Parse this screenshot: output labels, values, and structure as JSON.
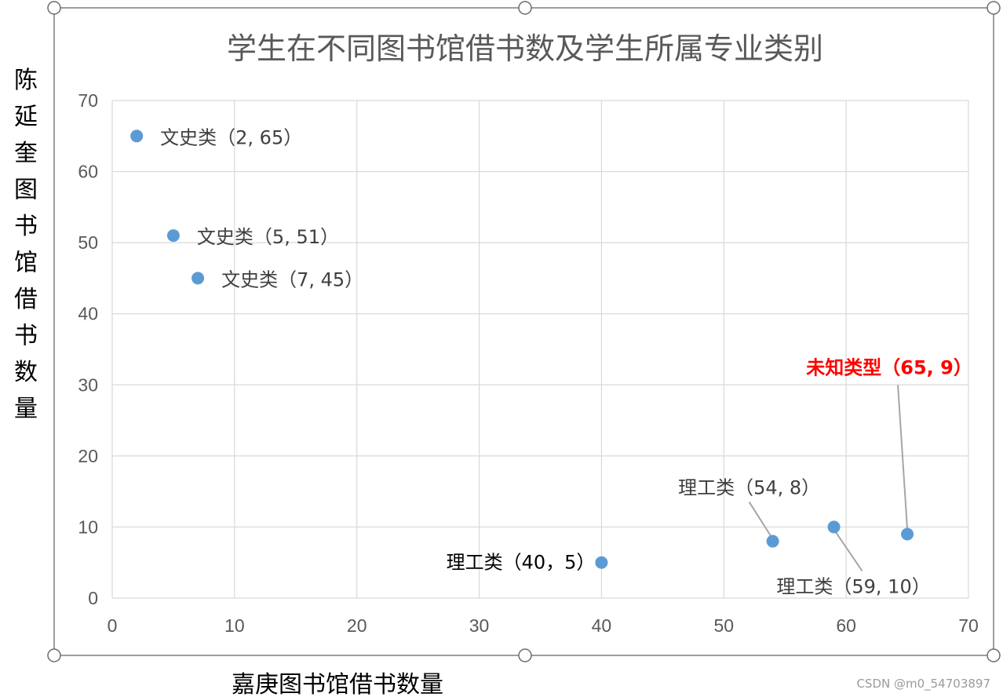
{
  "chart_data": {
    "type": "scatter",
    "title": "学生在不同图书馆借书数及学生所属专业类别",
    "xlabel": "嘉庚图书馆借书数量",
    "ylabel": "陈延奎图书馆借书数量",
    "xlim": [
      0,
      70
    ],
    "ylim": [
      0,
      70
    ],
    "x_ticks": [
      "0",
      "10",
      "20",
      "30",
      "40",
      "50",
      "60",
      "70"
    ],
    "y_ticks": [
      "0",
      "10",
      "20",
      "30",
      "40",
      "50",
      "60",
      "70"
    ],
    "grid": true,
    "series": [
      {
        "points": [
          {
            "x": 2,
            "y": 65
          },
          {
            "x": 5,
            "y": 51
          },
          {
            "x": 7,
            "y": 45
          },
          {
            "x": 40,
            "y": 5
          },
          {
            "x": 54,
            "y": 8
          },
          {
            "x": 59,
            "y": 10
          },
          {
            "x": 65,
            "y": 9
          }
        ]
      }
    ],
    "annotations": [
      {
        "text": "文史类（2, 65）",
        "x": 2,
        "y": 65
      },
      {
        "text": "文史类（5, 51）",
        "x": 5,
        "y": 51
      },
      {
        "text": "文史类（7, 45）",
        "x": 7,
        "y": 45
      },
      {
        "text": "理工类（40，5）",
        "x": 40,
        "y": 5
      },
      {
        "text": "理工类（54, 8）",
        "x": 54,
        "y": 8
      },
      {
        "text": "理工类（59, 10）",
        "x": 59,
        "y": 10
      },
      {
        "text": "未知类型（65, 9）",
        "x": 65,
        "y": 9
      }
    ]
  },
  "colors": {
    "point": "#5B9BD5",
    "grid": "#D9D9D9",
    "axis_text": "#595959",
    "title": "#595959",
    "highlight": "#FF0000",
    "leader": "#A6A6A6",
    "frame": "#7F7F7F"
  },
  "watermark": "CSDN @m0_54703897"
}
